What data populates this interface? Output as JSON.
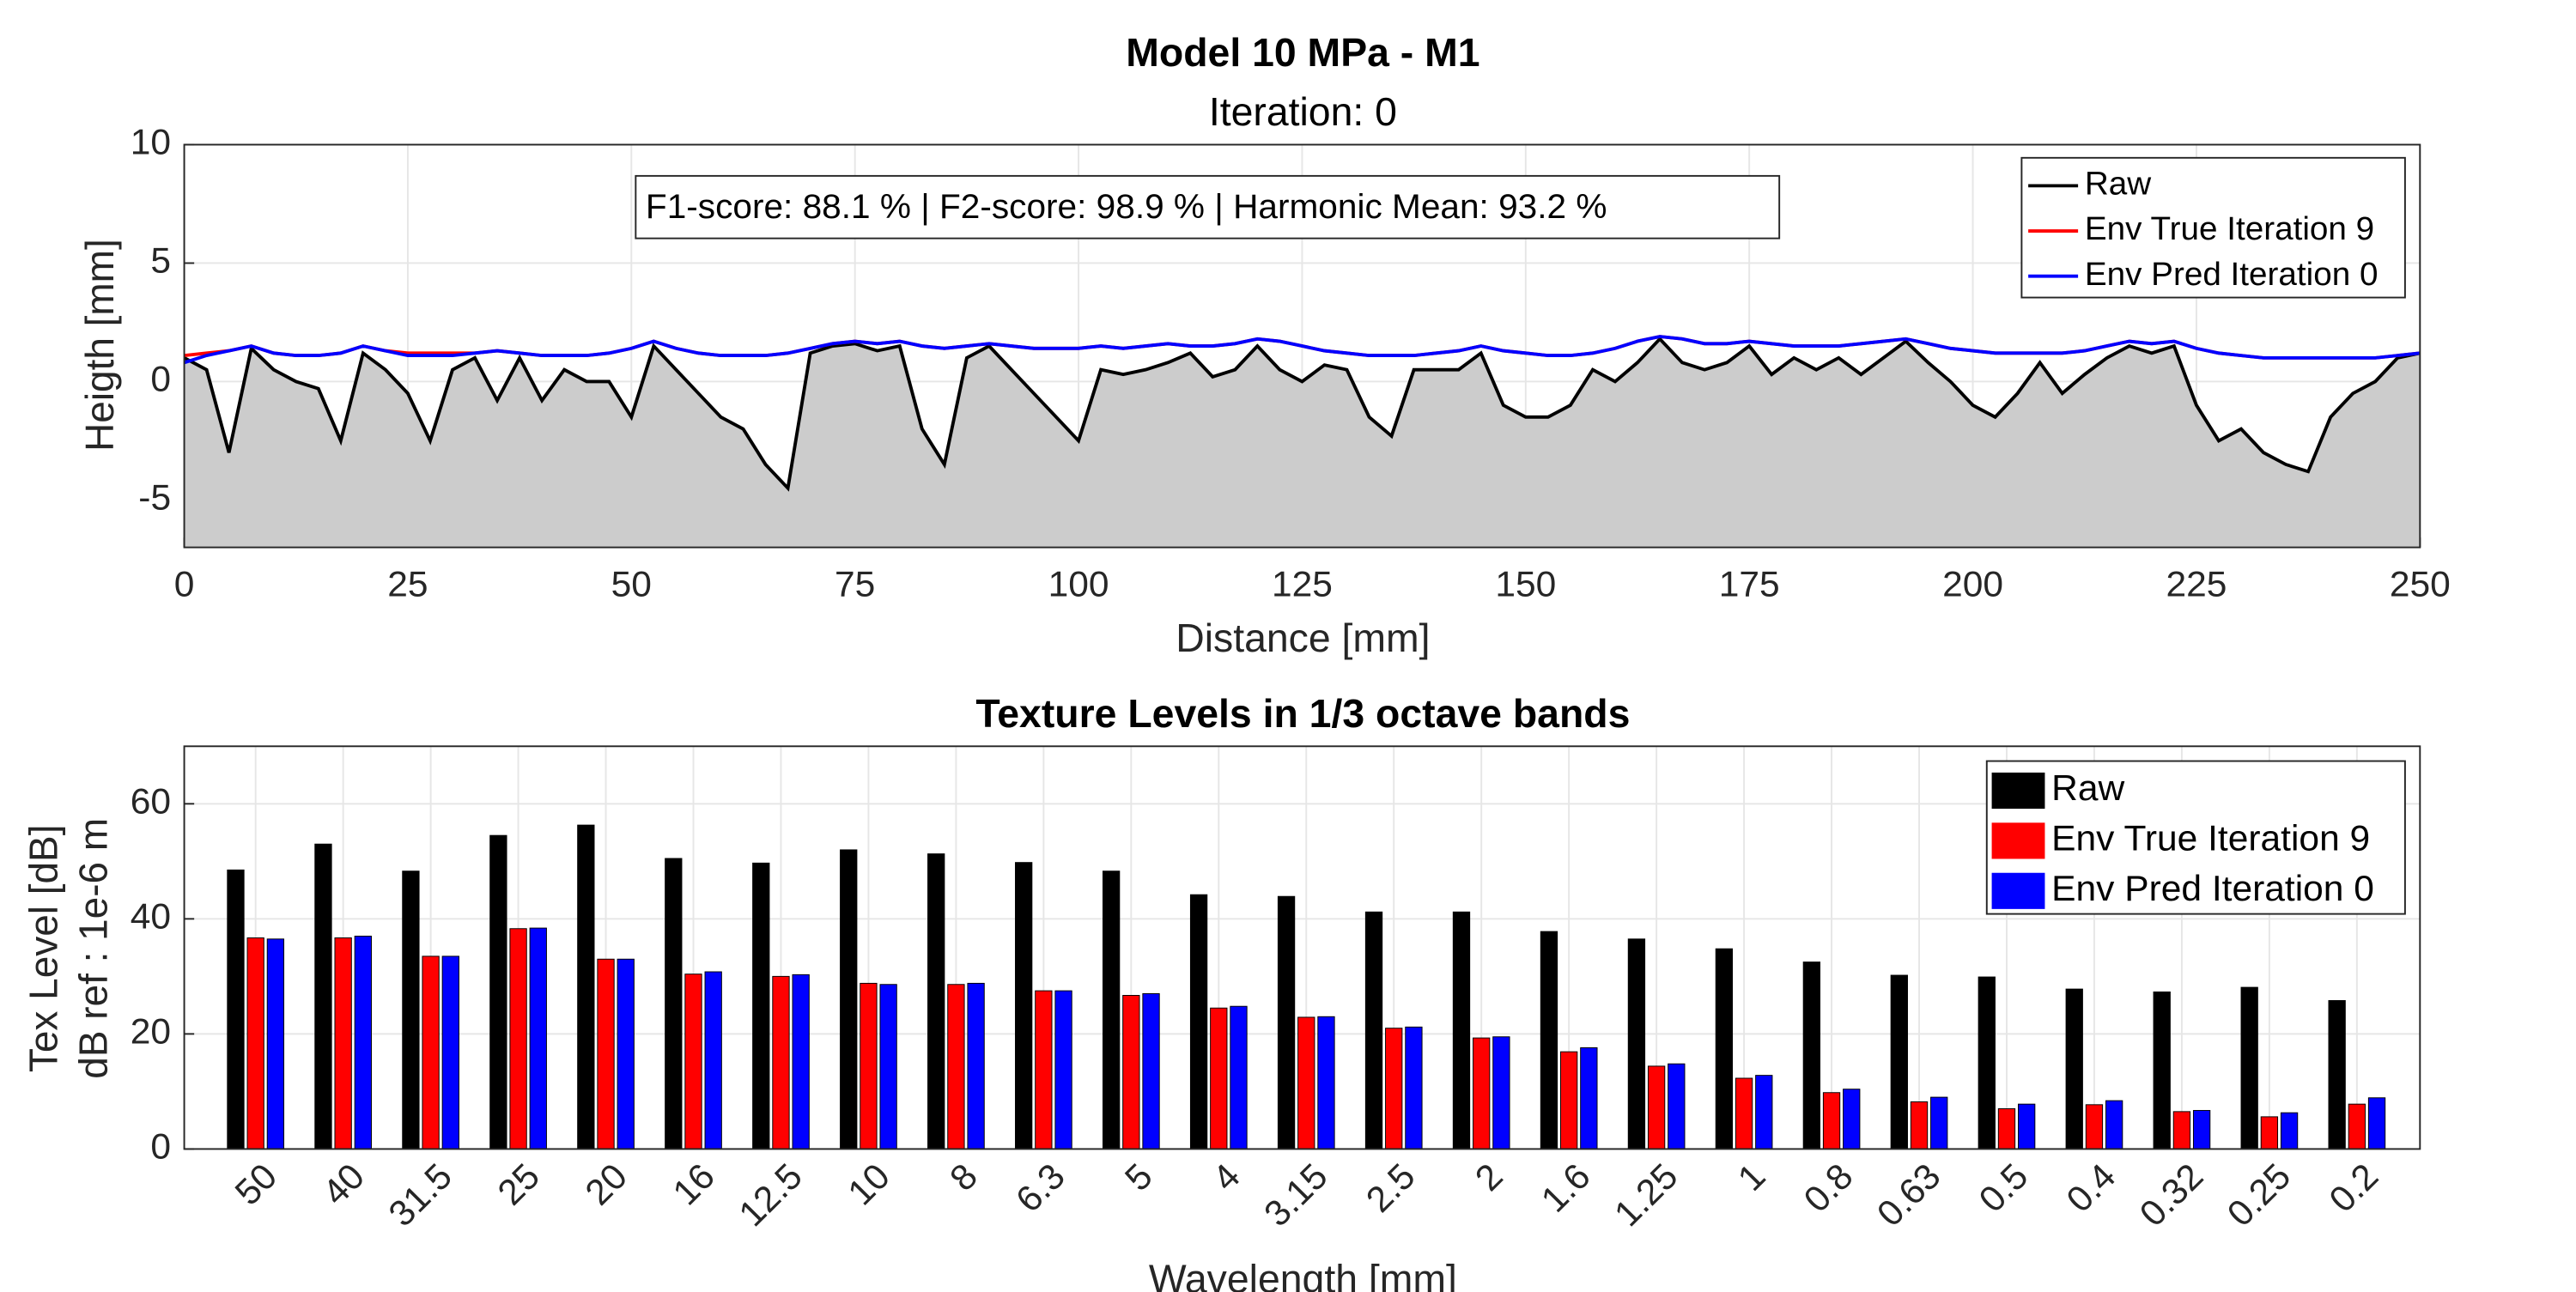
{
  "chart_data": [
    {
      "type": "line",
      "title": "Model 10 MPa - M1",
      "subtitle": "Iteration: 0",
      "x_label": "Distance [mm]",
      "y_label": "Heigth [mm]",
      "annotation": "F1-score: 88.1 % | F2-score: 98.9 % | Harmonic Mean: 93.2 %",
      "xlim": [
        0,
        250
      ],
      "xticks": [
        0,
        25,
        50,
        75,
        100,
        125,
        150,
        175,
        200,
        225,
        250
      ],
      "ylim": [
        -7,
        10
      ],
      "yticks": [
        -5,
        0,
        5,
        10
      ],
      "grid": true,
      "legend": "northeast",
      "fill_color": "#cccccc",
      "x": [
        0,
        2.5,
        5,
        7.5,
        10,
        12.5,
        15,
        17.5,
        20,
        22.5,
        25,
        27.5,
        30,
        32.5,
        35,
        37.5,
        40,
        42.5,
        45,
        47.5,
        50,
        52.5,
        55,
        57.5,
        60,
        62.5,
        65,
        67.5,
        70,
        72.5,
        75,
        77.5,
        80,
        82.5,
        85,
        87.5,
        90,
        92.5,
        95,
        97.5,
        100,
        102.5,
        105,
        107.5,
        110,
        112.5,
        115,
        117.5,
        120,
        122.5,
        125,
        127.5,
        130,
        132.5,
        135,
        137.5,
        140,
        142.5,
        145,
        147.5,
        150,
        152.5,
        155,
        157.5,
        160,
        162.5,
        165,
        167.5,
        170,
        172.5,
        175,
        177.5,
        180,
        182.5,
        185,
        187.5,
        190,
        192.5,
        195,
        197.5,
        200,
        202.5,
        205,
        207.5,
        210,
        212.5,
        215,
        217.5,
        220,
        222.5,
        225,
        227.5,
        230,
        232.5,
        235,
        237.5,
        240,
        242.5,
        245,
        247.5,
        250
      ],
      "series": [
        {
          "name": "Raw",
          "color": "#000000",
          "values": [
            1.0,
            0.5,
            -3.0,
            1.4,
            0.5,
            0.0,
            -0.3,
            -2.5,
            1.2,
            0.5,
            -0.5,
            -2.5,
            0.5,
            1.0,
            -0.8,
            1.0,
            -0.8,
            0.5,
            0.0,
            0.0,
            -1.5,
            1.5,
            0.5,
            -0.5,
            -1.5,
            -2.0,
            -3.5,
            -4.5,
            1.2,
            1.5,
            1.6,
            1.3,
            1.5,
            -2.0,
            -3.5,
            1.0,
            1.5,
            0.5,
            -0.5,
            -1.5,
            -2.5,
            0.5,
            0.3,
            0.5,
            0.8,
            1.2,
            0.2,
            0.5,
            1.5,
            0.5,
            0.0,
            0.7,
            0.5,
            -1.5,
            -2.3,
            0.5,
            0.5,
            0.5,
            1.2,
            -1.0,
            -1.5,
            -1.5,
            -1.0,
            0.5,
            0.0,
            0.8,
            1.8,
            0.8,
            0.5,
            0.8,
            1.5,
            0.3,
            1.0,
            0.5,
            1.0,
            0.3,
            1.0,
            1.7,
            0.8,
            0.0,
            -1.0,
            -1.5,
            -0.5,
            0.8,
            -0.5,
            0.3,
            1.0,
            1.5,
            1.2,
            1.5,
            -1.0,
            -2.5,
            -2.0,
            -3.0,
            -3.5,
            -3.8,
            -1.5,
            -0.5,
            0.0,
            1.0,
            1.2
          ]
        },
        {
          "name": "Env True Iteration 9",
          "color": "#ff0000",
          "values": [
            1.1,
            1.2,
            1.3,
            1.5,
            1.2,
            1.1,
            1.1,
            1.2,
            1.5,
            1.3,
            1.2,
            1.2,
            1.2,
            1.2,
            1.3,
            1.2,
            1.1,
            1.1,
            1.1,
            1.2,
            1.4,
            1.7,
            1.4,
            1.2,
            1.1,
            1.1,
            1.1,
            1.2,
            1.4,
            1.6,
            1.7,
            1.6,
            1.7,
            1.5,
            1.4,
            1.5,
            1.6,
            1.5,
            1.4,
            1.4,
            1.4,
            1.5,
            1.4,
            1.5,
            1.6,
            1.5,
            1.5,
            1.6,
            1.8,
            1.7,
            1.5,
            1.3,
            1.2,
            1.1,
            1.1,
            1.1,
            1.2,
            1.3,
            1.5,
            1.3,
            1.2,
            1.1,
            1.1,
            1.2,
            1.4,
            1.7,
            1.9,
            1.8,
            1.6,
            1.6,
            1.7,
            1.6,
            1.5,
            1.5,
            1.5,
            1.6,
            1.7,
            1.8,
            1.6,
            1.4,
            1.3,
            1.2,
            1.2,
            1.2,
            1.2,
            1.3,
            1.5,
            1.7,
            1.6,
            1.7,
            1.4,
            1.2,
            1.1,
            1.0,
            1.0,
            1.0,
            1.0,
            1.0,
            1.0,
            1.1,
            1.2
          ]
        },
        {
          "name": "Env Pred Iteration 0",
          "color": "#0000ff",
          "values": [
            0.8,
            1.1,
            1.3,
            1.5,
            1.2,
            1.1,
            1.1,
            1.2,
            1.5,
            1.3,
            1.1,
            1.1,
            1.1,
            1.2,
            1.3,
            1.2,
            1.1,
            1.1,
            1.1,
            1.2,
            1.4,
            1.7,
            1.4,
            1.2,
            1.1,
            1.1,
            1.1,
            1.2,
            1.4,
            1.6,
            1.7,
            1.6,
            1.7,
            1.5,
            1.4,
            1.5,
            1.6,
            1.5,
            1.4,
            1.4,
            1.4,
            1.5,
            1.4,
            1.5,
            1.6,
            1.5,
            1.5,
            1.6,
            1.8,
            1.7,
            1.5,
            1.3,
            1.2,
            1.1,
            1.1,
            1.1,
            1.2,
            1.3,
            1.5,
            1.3,
            1.2,
            1.1,
            1.1,
            1.2,
            1.4,
            1.7,
            1.9,
            1.8,
            1.6,
            1.6,
            1.7,
            1.6,
            1.5,
            1.5,
            1.5,
            1.6,
            1.7,
            1.8,
            1.6,
            1.4,
            1.3,
            1.2,
            1.2,
            1.2,
            1.2,
            1.3,
            1.5,
            1.7,
            1.6,
            1.7,
            1.4,
            1.2,
            1.1,
            1.0,
            1.0,
            1.0,
            1.0,
            1.0,
            1.0,
            1.1,
            1.2
          ]
        }
      ]
    },
    {
      "type": "bar",
      "title": "Texture Levels in 1/3 octave bands",
      "x_label": "Wavelength [mm]",
      "y_label": [
        "Tex Level [dB]",
        "dB ref : 1e-6 m"
      ],
      "ylim": [
        0,
        70
      ],
      "yticks": [
        0,
        20,
        40,
        60
      ],
      "grid": true,
      "legend": "northeast",
      "categories": [
        "50",
        "40",
        "31.5",
        "25",
        "20",
        "16",
        "12.5",
        "10",
        "8",
        "6.3",
        "5",
        "4",
        "3.15",
        "2.5",
        "2",
        "1.6",
        "1.25",
        "1",
        "0.8",
        "0.63",
        "0.5",
        "0.4",
        "0.32",
        "0.25",
        "0.2"
      ],
      "series": [
        {
          "name": "Raw",
          "color": "#000000",
          "values": [
            48.5,
            53,
            48.3,
            54.5,
            56.3,
            50.5,
            49.7,
            52,
            51.3,
            49.8,
            48.3,
            44.2,
            43.9,
            41.2,
            41.2,
            37.8,
            36.5,
            34.8,
            32.5,
            30.2,
            29.9,
            27.8,
            27.3,
            28.1,
            25.8
          ]
        },
        {
          "name": "Env True Iteration 9",
          "color": "#ff0000",
          "values": [
            36.7,
            36.7,
            33.5,
            38.3,
            33,
            30.4,
            30,
            28.8,
            28.6,
            27.5,
            26.7,
            24.5,
            22.9,
            21,
            19.3,
            16.9,
            14.4,
            12.3,
            9.8,
            8.2,
            7,
            7.7,
            6.5,
            5.6,
            7.8
          ]
        },
        {
          "name": "Env Pred Iteration 0",
          "color": "#0000ff",
          "values": [
            36.5,
            37,
            33.5,
            38.4,
            33,
            30.8,
            30.3,
            28.6,
            28.8,
            27.5,
            27,
            24.8,
            23,
            21.2,
            19.5,
            17.6,
            14.8,
            12.8,
            10.4,
            9,
            7.8,
            8.4,
            6.7,
            6.3,
            8.9
          ]
        }
      ]
    }
  ]
}
